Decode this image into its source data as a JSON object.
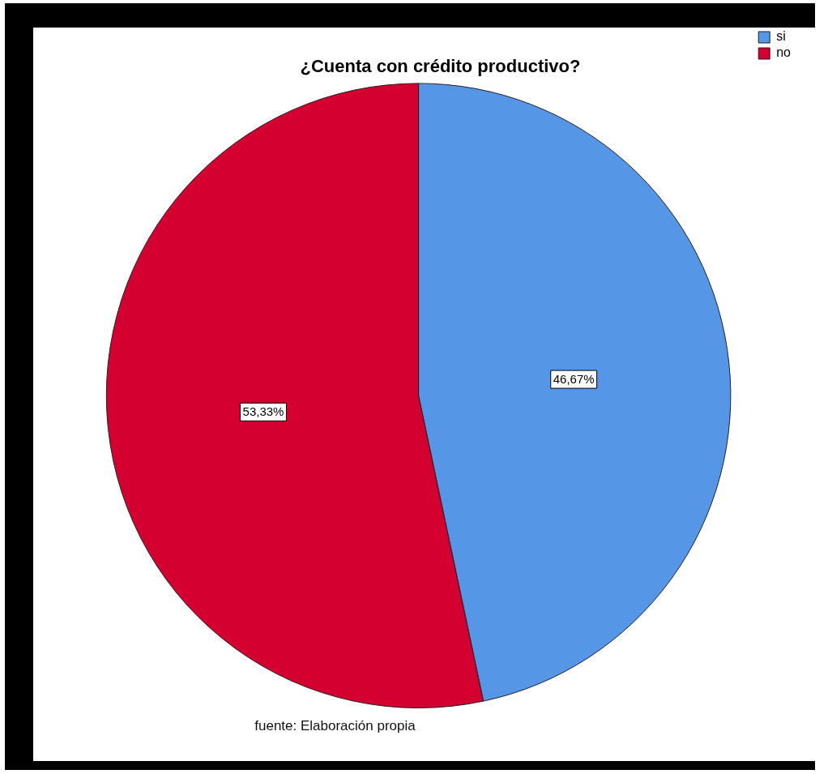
{
  "chart_data": {
    "type": "pie",
    "title": "¿Cuenta con crédito productivo?",
    "categories": [
      "si",
      "no"
    ],
    "values": [
      46.67,
      53.33
    ],
    "colors": [
      "#5596e6",
      "#d40030"
    ],
    "value_labels": [
      "46,67%",
      "53,33%"
    ],
    "legend": "top right",
    "annotations": [
      "fuente: Elaboración propia"
    ]
  }
}
